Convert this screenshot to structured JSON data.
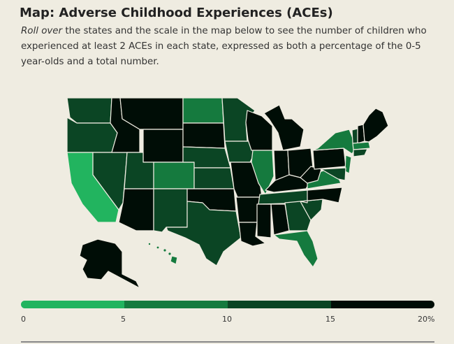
{
  "header": {
    "title": "Map: Adverse Childhood Experiences (ACEs)",
    "desc_italic": "Roll over",
    "desc_rest": " the states and the scale in the map below to see the number of children who experienced at least 2 ACEs in each state, expressed as both a percentage of the 0-5 year-olds and a total number."
  },
  "colors": {
    "bin0": "#22b45f",
    "bin1": "#157a3e",
    "bin2": "#0b4524",
    "bin3": "#000d06",
    "background": "#efece1"
  },
  "scale": {
    "bins": [
      "0-5",
      "5-10",
      "10-15",
      "15-20"
    ],
    "labels": [
      "0",
      "5",
      "10",
      "15",
      "20%"
    ]
  }
}
